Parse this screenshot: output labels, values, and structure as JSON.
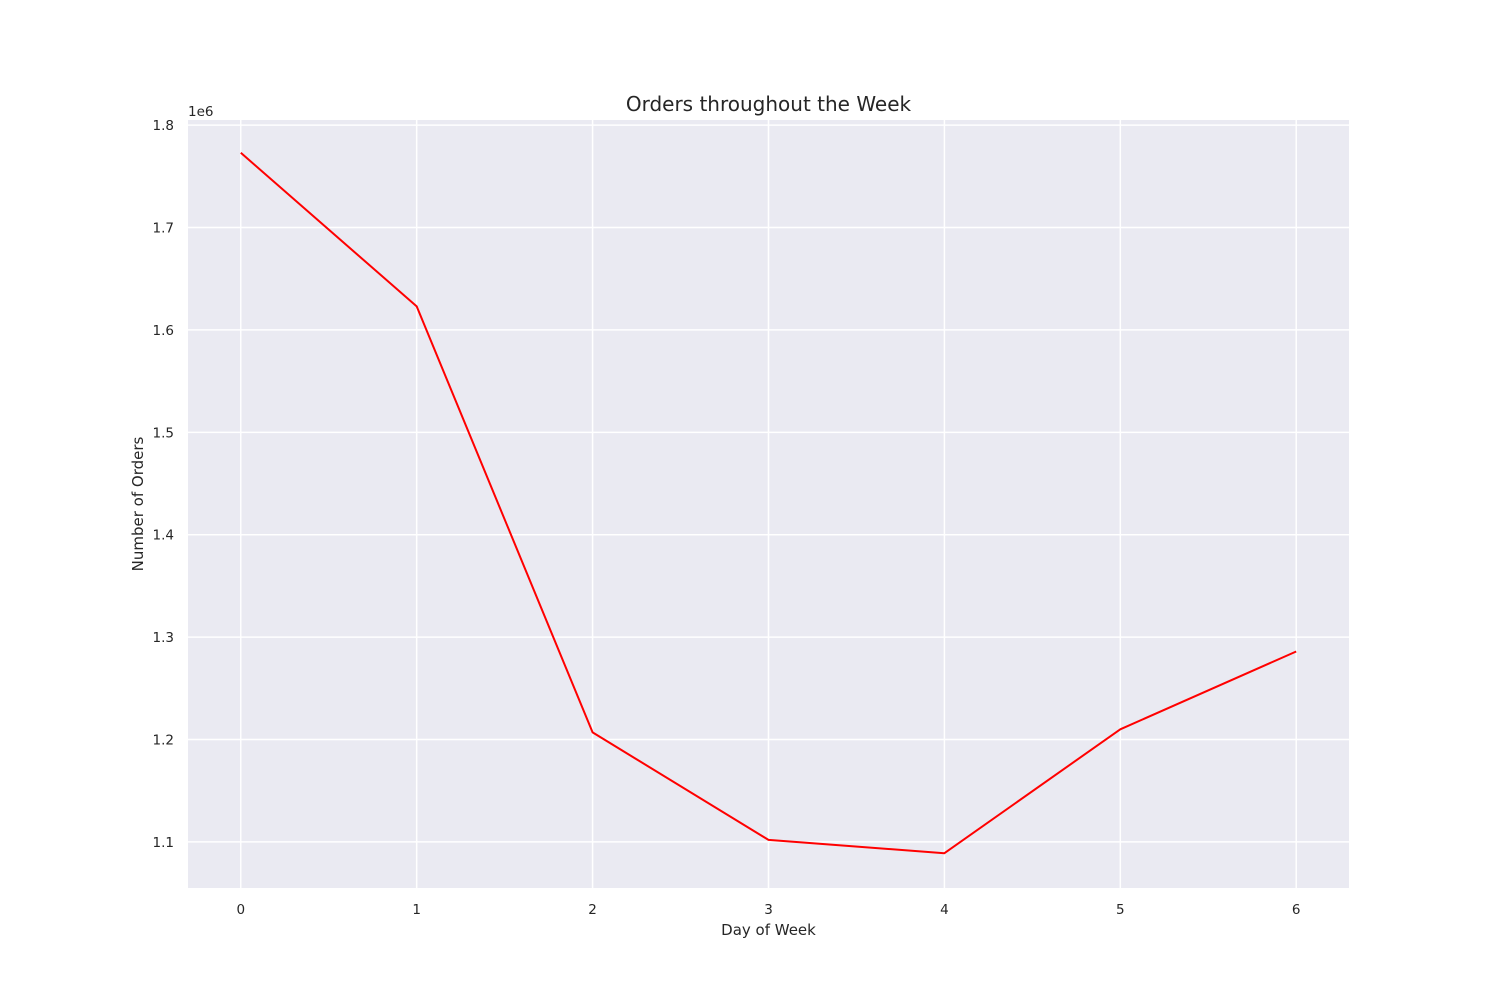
{
  "chart_data": {
    "type": "line",
    "title": "Orders throughout the Week",
    "xlabel": "Day of Week",
    "ylabel": "Number of Orders",
    "y_offset_label": "1e6",
    "x": [
      0,
      1,
      2,
      3,
      4,
      5,
      6
    ],
    "series": [
      {
        "values": [
          1773000,
          1623000,
          1207000,
          1102000,
          1089000,
          1210000,
          1286000
        ],
        "color": "#ff0000"
      }
    ],
    "x_ticks": [
      0,
      1,
      2,
      3,
      4,
      5,
      6
    ],
    "x_tick_labels": [
      "0",
      "1",
      "2",
      "3",
      "4",
      "5",
      "6"
    ],
    "y_ticks": [
      1100000,
      1200000,
      1300000,
      1400000,
      1500000,
      1600000,
      1700000,
      1800000
    ],
    "y_tick_labels": [
      "1.1",
      "1.2",
      "1.3",
      "1.4",
      "1.5",
      "1.6",
      "1.7",
      "1.8"
    ],
    "xlim": [
      -0.3,
      6.3
    ],
    "ylim": [
      1055000,
      1805000
    ],
    "grid": true,
    "colors": {
      "plot_background": "#eaeaf2",
      "grid": "#ffffff",
      "text": "#262626"
    }
  }
}
